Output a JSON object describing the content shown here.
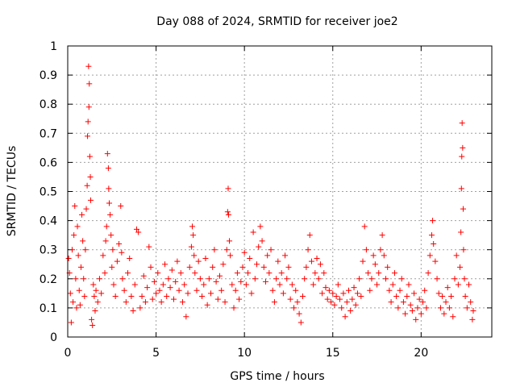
{
  "chart_data": {
    "type": "scatter",
    "title": "Day 088 of 2024, SRMTID for receiver joe2",
    "xlabel": "GPS time / hours",
    "ylabel": "SRMTID / TECUs",
    "xlim": [
      0,
      24
    ],
    "ylim": [
      0,
      1
    ],
    "xticks": [
      0,
      5,
      10,
      15,
      20
    ],
    "yticks": [
      0,
      0.1,
      0.2,
      0.3,
      0.4,
      0.5,
      0.6,
      0.7,
      0.8,
      0.9,
      1
    ],
    "xtick_labels": [
      "0",
      "5",
      "10",
      "15",
      "20"
    ],
    "ytick_labels": [
      "0",
      "0.1",
      "0.2",
      "0.3",
      "0.4",
      "0.5",
      "0.6",
      "0.7",
      "0.8",
      "0.9",
      "1"
    ],
    "grid": true,
    "marker": "+",
    "color": "#ff0000",
    "series": [
      {
        "name": "SRMTID",
        "points": [
          [
            0.05,
            0.27
          ],
          [
            0.1,
            0.22
          ],
          [
            0.15,
            0.15
          ],
          [
            0.2,
            0.05
          ],
          [
            0.25,
            0.3
          ],
          [
            0.3,
            0.12
          ],
          [
            0.35,
            0.35
          ],
          [
            0.4,
            0.45
          ],
          [
            0.45,
            0.2
          ],
          [
            0.5,
            0.1
          ],
          [
            0.55,
            0.38
          ],
          [
            0.6,
            0.28
          ],
          [
            0.65,
            0.16
          ],
          [
            0.7,
            0.11
          ],
          [
            0.75,
            0.24
          ],
          [
            0.8,
            0.42
          ],
          [
            0.85,
            0.33
          ],
          [
            0.9,
            0.2
          ],
          [
            0.95,
            0.14
          ],
          [
            1.0,
            0.3
          ],
          [
            1.05,
            0.44
          ],
          [
            1.1,
            0.52
          ],
          [
            1.12,
            0.69
          ],
          [
            1.15,
            0.74
          ],
          [
            1.18,
            0.93
          ],
          [
            1.2,
            0.79
          ],
          [
            1.22,
            0.87
          ],
          [
            1.25,
            0.62
          ],
          [
            1.28,
            0.55
          ],
          [
            1.3,
            0.47
          ],
          [
            1.35,
            0.06
          ],
          [
            1.4,
            0.04
          ],
          [
            1.45,
            0.18
          ],
          [
            1.5,
            0.14
          ],
          [
            1.55,
            0.09
          ],
          [
            1.6,
            0.16
          ],
          [
            1.7,
            0.12
          ],
          [
            1.8,
            0.2
          ],
          [
            1.9,
            0.15
          ],
          [
            2.0,
            0.28
          ],
          [
            2.1,
            0.22
          ],
          [
            2.15,
            0.33
          ],
          [
            2.2,
            0.38
          ],
          [
            2.25,
            0.63
          ],
          [
            2.3,
            0.58
          ],
          [
            2.32,
            0.51
          ],
          [
            2.35,
            0.46
          ],
          [
            2.4,
            0.42
          ],
          [
            2.45,
            0.35
          ],
          [
            2.5,
            0.24
          ],
          [
            2.55,
            0.3
          ],
          [
            2.6,
            0.18
          ],
          [
            2.7,
            0.14
          ],
          [
            2.8,
            0.26
          ],
          [
            2.9,
            0.32
          ],
          [
            3.0,
            0.45
          ],
          [
            3.05,
            0.29
          ],
          [
            3.1,
            0.2
          ],
          [
            3.2,
            0.16
          ],
          [
            3.3,
            0.12
          ],
          [
            3.4,
            0.22
          ],
          [
            3.5,
            0.27
          ],
          [
            3.6,
            0.14
          ],
          [
            3.7,
            0.09
          ],
          [
            3.8,
            0.18
          ],
          [
            3.9,
            0.37
          ],
          [
            4.0,
            0.36
          ],
          [
            4.1,
            0.1
          ],
          [
            4.2,
            0.14
          ],
          [
            4.3,
            0.21
          ],
          [
            4.4,
            0.12
          ],
          [
            4.5,
            0.17
          ],
          [
            4.6,
            0.31
          ],
          [
            4.7,
            0.24
          ],
          [
            4.8,
            0.13
          ],
          [
            4.9,
            0.19
          ],
          [
            5.0,
            0.15
          ],
          [
            5.1,
            0.22
          ],
          [
            5.2,
            0.16
          ],
          [
            5.3,
            0.12
          ],
          [
            5.4,
            0.18
          ],
          [
            5.5,
            0.25
          ],
          [
            5.6,
            0.14
          ],
          [
            5.7,
            0.2
          ],
          [
            5.8,
            0.17
          ],
          [
            5.9,
            0.23
          ],
          [
            6.0,
            0.13
          ],
          [
            6.1,
            0.19
          ],
          [
            6.2,
            0.26
          ],
          [
            6.3,
            0.16
          ],
          [
            6.4,
            0.22
          ],
          [
            6.5,
            0.12
          ],
          [
            6.6,
            0.18
          ],
          [
            6.7,
            0.07
          ],
          [
            6.8,
            0.15
          ],
          [
            6.9,
            0.24
          ],
          [
            7.0,
            0.31
          ],
          [
            7.05,
            0.38
          ],
          [
            7.1,
            0.35
          ],
          [
            7.15,
            0.28
          ],
          [
            7.2,
            0.22
          ],
          [
            7.3,
            0.16
          ],
          [
            7.4,
            0.26
          ],
          [
            7.5,
            0.2
          ],
          [
            7.6,
            0.14
          ],
          [
            7.7,
            0.18
          ],
          [
            7.8,
            0.27
          ],
          [
            7.9,
            0.11
          ],
          [
            8.0,
            0.2
          ],
          [
            8.1,
            0.15
          ],
          [
            8.2,
            0.24
          ],
          [
            8.3,
            0.3
          ],
          [
            8.4,
            0.19
          ],
          [
            8.5,
            0.13
          ],
          [
            8.6,
            0.21
          ],
          [
            8.7,
            0.16
          ],
          [
            8.8,
            0.25
          ],
          [
            8.9,
            0.12
          ],
          [
            9.0,
            0.3
          ],
          [
            9.05,
            0.43
          ],
          [
            9.08,
            0.51
          ],
          [
            9.1,
            0.42
          ],
          [
            9.15,
            0.33
          ],
          [
            9.2,
            0.28
          ],
          [
            9.3,
            0.18
          ],
          [
            9.4,
            0.1
          ],
          [
            9.5,
            0.16
          ],
          [
            9.6,
            0.22
          ],
          [
            9.7,
            0.13
          ],
          [
            9.8,
            0.19
          ],
          [
            9.9,
            0.24
          ],
          [
            10.0,
            0.29
          ],
          [
            10.1,
            0.18
          ],
          [
            10.2,
            0.22
          ],
          [
            10.3,
            0.27
          ],
          [
            10.4,
            0.15
          ],
          [
            10.5,
            0.36
          ],
          [
            10.6,
            0.2
          ],
          [
            10.7,
            0.25
          ],
          [
            10.8,
            0.31
          ],
          [
            10.9,
            0.38
          ],
          [
            11.0,
            0.33
          ],
          [
            11.1,
            0.24
          ],
          [
            11.2,
            0.19
          ],
          [
            11.3,
            0.28
          ],
          [
            11.4,
            0.22
          ],
          [
            11.5,
            0.3
          ],
          [
            11.6,
            0.16
          ],
          [
            11.7,
            0.12
          ],
          [
            11.8,
            0.2
          ],
          [
            11.9,
            0.26
          ],
          [
            12.0,
            0.18
          ],
          [
            12.1,
            0.22
          ],
          [
            12.2,
            0.15
          ],
          [
            12.3,
            0.28
          ],
          [
            12.4,
            0.2
          ],
          [
            12.5,
            0.24
          ],
          [
            12.6,
            0.13
          ],
          [
            12.7,
            0.18
          ],
          [
            12.8,
            0.1
          ],
          [
            12.9,
            0.16
          ],
          [
            13.0,
            0.12
          ],
          [
            13.1,
            0.08
          ],
          [
            13.2,
            0.05
          ],
          [
            13.3,
            0.14
          ],
          [
            13.4,
            0.2
          ],
          [
            13.5,
            0.24
          ],
          [
            13.6,
            0.3
          ],
          [
            13.7,
            0.35
          ],
          [
            13.8,
            0.26
          ],
          [
            13.9,
            0.18
          ],
          [
            14.0,
            0.22
          ],
          [
            14.1,
            0.27
          ],
          [
            14.2,
            0.2
          ],
          [
            14.3,
            0.25
          ],
          [
            14.4,
            0.15
          ],
          [
            14.5,
            0.22
          ],
          [
            14.6,
            0.17
          ],
          [
            14.7,
            0.13
          ],
          [
            14.8,
            0.16
          ],
          [
            14.9,
            0.12
          ],
          [
            15.0,
            0.15
          ],
          [
            15.1,
            0.11
          ],
          [
            15.2,
            0.14
          ],
          [
            15.3,
            0.18
          ],
          [
            15.4,
            0.13
          ],
          [
            15.5,
            0.1
          ],
          [
            15.6,
            0.15
          ],
          [
            15.7,
            0.07
          ],
          [
            15.8,
            0.12
          ],
          [
            15.9,
            0.16
          ],
          [
            16.0,
            0.09
          ],
          [
            16.1,
            0.13
          ],
          [
            16.2,
            0.17
          ],
          [
            16.3,
            0.11
          ],
          [
            16.4,
            0.15
          ],
          [
            16.5,
            0.2
          ],
          [
            16.6,
            0.14
          ],
          [
            16.7,
            0.26
          ],
          [
            16.8,
            0.38
          ],
          [
            16.9,
            0.3
          ],
          [
            17.0,
            0.22
          ],
          [
            17.1,
            0.16
          ],
          [
            17.2,
            0.2
          ],
          [
            17.3,
            0.28
          ],
          [
            17.4,
            0.25
          ],
          [
            17.5,
            0.18
          ],
          [
            17.6,
            0.22
          ],
          [
            17.7,
            0.3
          ],
          [
            17.8,
            0.35
          ],
          [
            17.9,
            0.28
          ],
          [
            18.0,
            0.2
          ],
          [
            18.1,
            0.24
          ],
          [
            18.2,
            0.16
          ],
          [
            18.3,
            0.12
          ],
          [
            18.4,
            0.18
          ],
          [
            18.5,
            0.22
          ],
          [
            18.6,
            0.14
          ],
          [
            18.7,
            0.1
          ],
          [
            18.8,
            0.16
          ],
          [
            18.9,
            0.2
          ],
          [
            19.0,
            0.12
          ],
          [
            19.1,
            0.08
          ],
          [
            19.2,
            0.14
          ],
          [
            19.3,
            0.18
          ],
          [
            19.4,
            0.11
          ],
          [
            19.5,
            0.09
          ],
          [
            19.6,
            0.15
          ],
          [
            19.7,
            0.06
          ],
          [
            19.8,
            0.1
          ],
          [
            19.9,
            0.13
          ],
          [
            20.0,
            0.08
          ],
          [
            20.1,
            0.12
          ],
          [
            20.2,
            0.16
          ],
          [
            20.3,
            0.1
          ],
          [
            20.4,
            0.22
          ],
          [
            20.5,
            0.28
          ],
          [
            20.6,
            0.35
          ],
          [
            20.65,
            0.4
          ],
          [
            20.7,
            0.32
          ],
          [
            20.8,
            0.26
          ],
          [
            20.9,
            0.2
          ],
          [
            21.0,
            0.15
          ],
          [
            21.1,
            0.1
          ],
          [
            21.2,
            0.14
          ],
          [
            21.3,
            0.08
          ],
          [
            21.4,
            0.12
          ],
          [
            21.5,
            0.17
          ],
          [
            21.6,
            0.1
          ],
          [
            21.7,
            0.14
          ],
          [
            21.8,
            0.07
          ],
          [
            21.9,
            0.2
          ],
          [
            22.0,
            0.28
          ],
          [
            22.1,
            0.18
          ],
          [
            22.2,
            0.24
          ],
          [
            22.25,
            0.36
          ],
          [
            22.28,
            0.51
          ],
          [
            22.3,
            0.62
          ],
          [
            22.32,
            0.735
          ],
          [
            22.35,
            0.65
          ],
          [
            22.38,
            0.44
          ],
          [
            22.4,
            0.3
          ],
          [
            22.45,
            0.2
          ],
          [
            22.5,
            0.14
          ],
          [
            22.6,
            0.1
          ],
          [
            22.7,
            0.18
          ],
          [
            22.8,
            0.12
          ],
          [
            22.9,
            0.06
          ],
          [
            22.95,
            0.09
          ]
        ]
      }
    ]
  }
}
